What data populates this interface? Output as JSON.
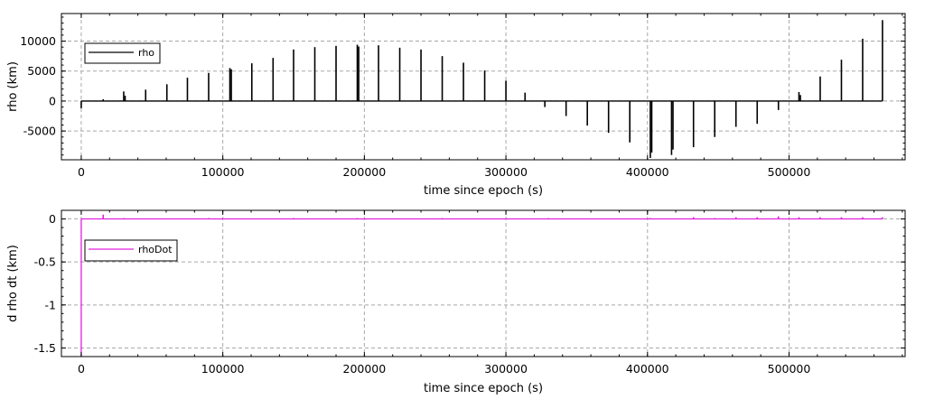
{
  "chart_data": [
    {
      "type": "line",
      "xlabel": "time since epoch (s)",
      "ylabel": "rho (km)",
      "xlim": [
        -14000,
        582000
      ],
      "ylim": [
        -9800,
        14600
      ],
      "grid": true,
      "legend_position": "top-left",
      "x_ticks": [
        0,
        100000,
        200000,
        300000,
        400000,
        500000
      ],
      "x_tick_labels": [
        "0",
        "100000",
        "200000",
        "300000",
        "400000",
        "500000"
      ],
      "y_ticks": [
        -5000,
        0,
        5000,
        10000
      ],
      "y_tick_labels": [
        "-5000",
        "0",
        "5000",
        "10000"
      ],
      "series": [
        {
          "name": "rho",
          "color": "#000000",
          "baseline": [
            [
              0,
              0
            ],
            [
              566000,
              0
            ]
          ],
          "spikes": [
            [
              0,
              -1200
            ],
            [
              15500,
              300
            ],
            [
              30000,
              1600
            ],
            [
              31000,
              900
            ],
            [
              45500,
              1900
            ],
            [
              60500,
              2800
            ],
            [
              75000,
              3900
            ],
            [
              90000,
              4700
            ],
            [
              105000,
              5500
            ],
            [
              106000,
              5300
            ],
            [
              120500,
              6300
            ],
            [
              135500,
              7200
            ],
            [
              150000,
              8600
            ],
            [
              165000,
              9000
            ],
            [
              180000,
              9200
            ],
            [
              195000,
              9400
            ],
            [
              196000,
              9100
            ],
            [
              210000,
              9300
            ],
            [
              225000,
              8900
            ],
            [
              240000,
              8600
            ],
            [
              255000,
              7500
            ],
            [
              270000,
              6400
            ],
            [
              285000,
              5100
            ],
            [
              300000,
              3400
            ],
            [
              313500,
              1400
            ],
            [
              327500,
              -1000
            ],
            [
              342500,
              -2500
            ],
            [
              357500,
              -4100
            ],
            [
              372500,
              -5300
            ],
            [
              387500,
              -6900
            ],
            [
              402000,
              -9500
            ],
            [
              403000,
              -8600
            ],
            [
              417000,
              -9000
            ],
            [
              418000,
              -8100
            ],
            [
              432500,
              -7700
            ],
            [
              447500,
              -6000
            ],
            [
              462500,
              -4300
            ],
            [
              477500,
              -3800
            ],
            [
              492500,
              -1500
            ],
            [
              507000,
              1500
            ],
            [
              508000,
              1000
            ],
            [
              522000,
              4100
            ],
            [
              537000,
              6900
            ],
            [
              552000,
              10400
            ],
            [
              566000,
              13500
            ]
          ]
        }
      ]
    },
    {
      "type": "line",
      "xlabel": "time since epoch (s)",
      "ylabel": "d rho dt (km)",
      "xlim": [
        -14000,
        582000
      ],
      "ylim": [
        -1.6,
        0.1
      ],
      "grid": true,
      "legend_position": "top-left",
      "x_ticks": [
        0,
        100000,
        200000,
        300000,
        400000,
        500000
      ],
      "x_tick_labels": [
        "0",
        "100000",
        "200000",
        "300000",
        "400000",
        "500000"
      ],
      "y_ticks": [
        -1.5,
        -1,
        -0.5,
        0
      ],
      "y_tick_labels": [
        "-1.5",
        "-1",
        "-0.5",
        "0"
      ],
      "series": [
        {
          "name": "rhoDot",
          "color": "#e020e0",
          "start_drop": [
            [
              0,
              -1.6
            ],
            [
              0,
              0
            ]
          ],
          "baseline": [
            [
              0,
              0
            ],
            [
              566000,
              0
            ]
          ],
          "spikes": [
            [
              15500,
              0.05
            ],
            [
              30000,
              0.01
            ],
            [
              90000,
              0.01
            ],
            [
              150000,
              0.01
            ],
            [
              195000,
              0.01
            ],
            [
              255000,
              0.01
            ],
            [
              330000,
              0.01
            ],
            [
              402000,
              0.01
            ],
            [
              432500,
              0.02
            ],
            [
              447500,
              0.01
            ],
            [
              462500,
              0.02
            ],
            [
              477500,
              0.02
            ],
            [
              492500,
              0.03
            ],
            [
              507000,
              0.02
            ],
            [
              522000,
              0.02
            ],
            [
              537000,
              0.02
            ],
            [
              552000,
              0.02
            ],
            [
              566000,
              0.02
            ]
          ]
        }
      ]
    }
  ]
}
